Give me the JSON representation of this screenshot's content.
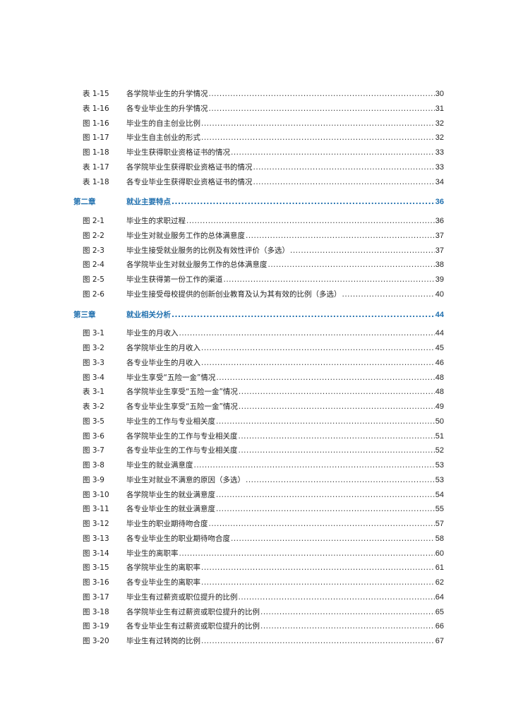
{
  "toc": [
    {
      "type": "entry",
      "label": "表 1-15",
      "title": "各学院毕业生的升学情况",
      "page": "30"
    },
    {
      "type": "entry",
      "label": "表 1-16",
      "title": "各专业毕业生的升学情况",
      "page": "31"
    },
    {
      "type": "entry",
      "label": "图 1-16",
      "title": "毕业生的自主创业比例",
      "page": "32"
    },
    {
      "type": "entry",
      "label": "图 1-17",
      "title": "毕业生自主创业的形式",
      "page": "32"
    },
    {
      "type": "entry",
      "label": "图 1-18",
      "title": "毕业生获得职业资格证书的情况",
      "page": "33"
    },
    {
      "type": "entry",
      "label": "表 1-17",
      "title": "各学院毕业生获得职业资格证书的情况",
      "page": "33"
    },
    {
      "type": "entry",
      "label": "表 1-18",
      "title": "各专业毕业生获得职业资格证书的情况",
      "page": "34"
    },
    {
      "type": "chapter",
      "label": "第二章",
      "title": "就业主要特点",
      "page": "36"
    },
    {
      "type": "entry",
      "label": "图 2-1",
      "title": "毕业生的求职过程",
      "page": "36"
    },
    {
      "type": "entry",
      "label": "图 2-2",
      "title": "毕业生对就业服务工作的总体满意度",
      "page": "37"
    },
    {
      "type": "entry",
      "label": "图 2-3",
      "title": "毕业生接受就业服务的比例及有效性评价（多选）",
      "page": "37"
    },
    {
      "type": "entry",
      "label": "图 2-4",
      "title": "各学院毕业生对就业服务工作的总体满意度",
      "page": "38"
    },
    {
      "type": "entry",
      "label": "图 2-5",
      "title": "毕业生获得第一份工作的渠道",
      "page": "39"
    },
    {
      "type": "entry",
      "label": "图 2-6",
      "title": "毕业生接受母校提供的创新创业教育及认为其有效的比例（多选）",
      "page": "40"
    },
    {
      "type": "chapter",
      "label": "第三章",
      "title": "就业相关分析",
      "page": "44"
    },
    {
      "type": "entry",
      "label": "图 3-1",
      "title": "毕业生的月收入",
      "page": "44"
    },
    {
      "type": "entry",
      "label": "图 3-2",
      "title": "各学院毕业生的月收入",
      "page": "45"
    },
    {
      "type": "entry",
      "label": "图 3-3",
      "title": "各专业毕业生的月收入",
      "page": "46"
    },
    {
      "type": "entry",
      "label": "图 3-4",
      "title": "毕业生享受“五险一金”情况",
      "page": "48"
    },
    {
      "type": "entry",
      "label": "表 3-1",
      "title": "各学院毕业生享受“五险一金”情况",
      "page": "48"
    },
    {
      "type": "entry",
      "label": "表 3-2",
      "title": "各专业毕业生享受“五险一金”情况",
      "page": "49"
    },
    {
      "type": "entry",
      "label": "图 3-5",
      "title": "毕业生的工作与专业相关度",
      "page": "50"
    },
    {
      "type": "entry",
      "label": "图 3-6",
      "title": "各学院毕业生的工作与专业相关度",
      "page": "51"
    },
    {
      "type": "entry",
      "label": "图 3-7",
      "title": "各专业毕业生的工作与专业相关度",
      "page": "52"
    },
    {
      "type": "entry",
      "label": "图 3-8",
      "title": "毕业生的就业满意度",
      "page": "53"
    },
    {
      "type": "entry",
      "label": "图 3-9",
      "title": "毕业生对就业不满意的原因（多选）",
      "page": "53"
    },
    {
      "type": "entry",
      "label": "图 3-10",
      "title": "各学院毕业生的就业满意度",
      "page": "54"
    },
    {
      "type": "entry",
      "label": "图 3-11",
      "title": "各专业毕业生的就业满意度",
      "page": "55"
    },
    {
      "type": "entry",
      "label": "图 3-12",
      "title": "毕业生的职业期待吻合度",
      "page": "57"
    },
    {
      "type": "entry",
      "label": "图 3-13",
      "title": "各专业毕业生的职业期待吻合度",
      "page": "58"
    },
    {
      "type": "entry",
      "label": "图 3-14",
      "title": "毕业生的离职率",
      "page": "60"
    },
    {
      "type": "entry",
      "label": "图 3-15",
      "title": "各学院毕业生的离职率",
      "page": "61"
    },
    {
      "type": "entry",
      "label": "图 3-16",
      "title": "各专业毕业生的离职率",
      "page": "62"
    },
    {
      "type": "entry",
      "label": "图 3-17",
      "title": "毕业生有过薪资或职位提升的比例",
      "page": "64"
    },
    {
      "type": "entry",
      "label": "图 3-18",
      "title": "各学院毕业生有过薪资或职位提升的比例",
      "page": "65"
    },
    {
      "type": "entry",
      "label": "图 3-19",
      "title": "各专业毕业生有过薪资或职位提升的比例",
      "page": "66"
    },
    {
      "type": "entry",
      "label": "图 3-20",
      "title": "毕业生有过转岗的比例",
      "page": "67"
    }
  ],
  "colors": {
    "chapter": "#1f6fae",
    "text": "#222222"
  }
}
